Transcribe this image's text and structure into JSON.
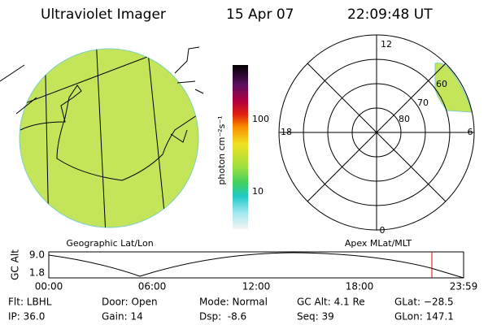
{
  "header": {
    "instrument": "Ultraviolet Imager",
    "date": "15 Apr 07",
    "time": "22:09:48 UT"
  },
  "colorbar": {
    "unit": "photon cm⁻²s⁻¹",
    "labels": [
      "100",
      "10"
    ]
  },
  "polar": {
    "mlt_labels": [
      "12",
      "18",
      "6",
      "0"
    ],
    "lat_labels": [
      "80",
      "70",
      "60"
    ]
  },
  "panels": {
    "left": "Geographic Lat/Lon",
    "right": "Apex MLat/MLT"
  },
  "altitude_plot": {
    "ylabel": "GC Alt",
    "yticks": [
      "9.0",
      "1.8"
    ],
    "xticks": [
      "00:00",
      "06:00",
      "12:00",
      "18:00",
      "23:59"
    ]
  },
  "info": [
    [
      "Flt: LBHL",
      "Door: Open",
      "Mode: Normal",
      "GC Alt: 4.1 Re",
      "GLat: −28.5"
    ],
    [
      "IP: 36.0",
      "Gain: 14",
      "Dsp:  -8.6",
      "Seq: 39",
      "GLon: 147.1"
    ]
  ]
}
